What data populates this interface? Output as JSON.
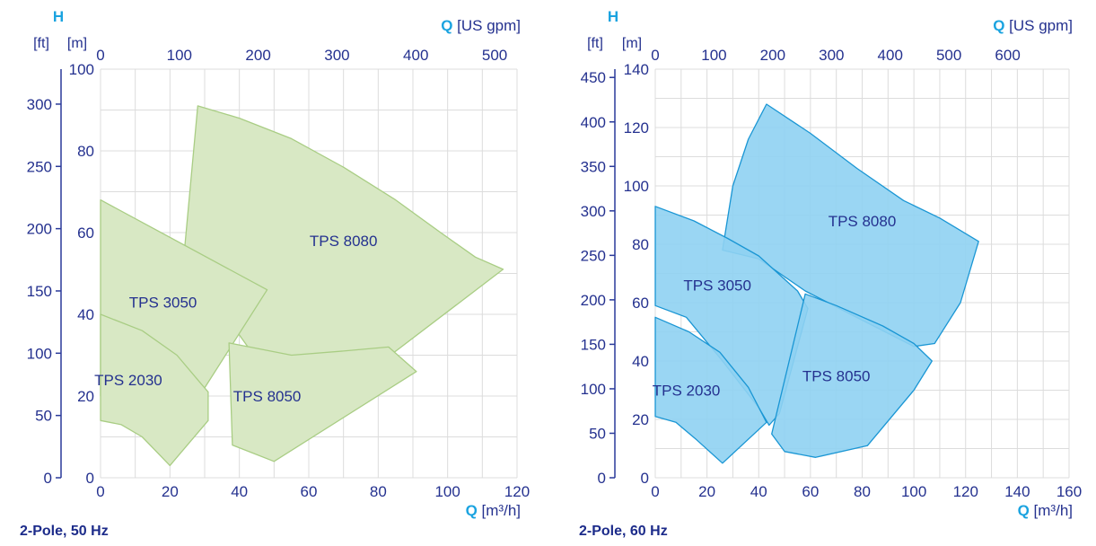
{
  "colors": {
    "axis_text": "#24318f",
    "axis_line": "#2a3a9a",
    "accent": "#1aa3e0",
    "grid": "#dcdcdc",
    "fill_50hz": "#d8e8c4",
    "stroke_50hz": "#a9cd84",
    "fill_60hz": "#8fd1f2",
    "stroke_60hz": "#1a96d4"
  },
  "chart_data": [
    {
      "type": "area",
      "caption": "2-Pole, 50 Hz",
      "h_letter": "H",
      "h_unit_ft": "[ft]",
      "h_unit_m": "[m]",
      "q_letter": "Q",
      "q_unit_top": "[US gpm]",
      "q_unit_bottom": "[m³/h]",
      "xlim": [
        0,
        120
      ],
      "ylim": [
        0,
        100
      ],
      "x_ticks": [
        0,
        20,
        40,
        60,
        80,
        100,
        120
      ],
      "y_ticks": [
        0,
        20,
        40,
        60,
        80,
        100
      ],
      "ft_ticks": [
        0,
        50,
        100,
        150,
        200,
        250,
        300
      ],
      "gpm_ticks": [
        0,
        100,
        200,
        300,
        400,
        500
      ],
      "m_per_ft": 0.3048,
      "m3h_per_gpm": 0.2271,
      "grid": true,
      "series": [
        {
          "name": "TPS 8080",
          "label_at": [
            70,
            58
          ],
          "points": [
            [
              28,
              91
            ],
            [
              40,
              88
            ],
            [
              55,
              83
            ],
            [
              70,
              76
            ],
            [
              85,
              68
            ],
            [
              98,
              60
            ],
            [
              108,
              54
            ],
            [
              116,
              51
            ],
            [
              65,
              18
            ],
            [
              45,
              29
            ],
            [
              24,
              54
            ]
          ]
        },
        {
          "name": "TPS 3050",
          "label_at": [
            18,
            43
          ],
          "points": [
            [
              0,
              68
            ],
            [
              48,
              46
            ],
            [
              30,
              22
            ],
            [
              26,
              10
            ],
            [
              0,
              20
            ]
          ]
        },
        {
          "name": "TPS 8050",
          "label_at": [
            48,
            20
          ],
          "points": [
            [
              37,
              33
            ],
            [
              55,
              30
            ],
            [
              70,
              31
            ],
            [
              83,
              32
            ],
            [
              91,
              26
            ],
            [
              50,
              4
            ],
            [
              38,
              8
            ]
          ]
        },
        {
          "name": "TPS 2030",
          "label_at": [
            8,
            24
          ],
          "points": [
            [
              0,
              40
            ],
            [
              12,
              36
            ],
            [
              22,
              30
            ],
            [
              29,
              23
            ],
            [
              31,
              21
            ],
            [
              31,
              14
            ],
            [
              20,
              3
            ],
            [
              12,
              10
            ],
            [
              6,
              13
            ],
            [
              0,
              14
            ]
          ]
        }
      ]
    },
    {
      "type": "area",
      "caption": "2-Pole, 60 Hz",
      "h_letter": "H",
      "h_unit_ft": "[ft]",
      "h_unit_m": "[m]",
      "q_letter": "Q",
      "q_unit_top": "[US gpm]",
      "q_unit_bottom": "[m³/h]",
      "xlim": [
        0,
        160
      ],
      "ylim": [
        0,
        140
      ],
      "x_ticks": [
        0,
        20,
        40,
        60,
        80,
        100,
        120,
        140,
        160
      ],
      "y_ticks": [
        0,
        20,
        40,
        60,
        80,
        100,
        120,
        140
      ],
      "ft_ticks": [
        0,
        50,
        100,
        150,
        200,
        250,
        300,
        350,
        400,
        450
      ],
      "gpm_ticks": [
        0,
        100,
        200,
        300,
        400,
        500,
        600
      ],
      "m_per_ft": 0.3048,
      "m3h_per_gpm": 0.2271,
      "grid": true,
      "series": [
        {
          "name": "TPS 8080",
          "label_at": [
            80,
            88
          ],
          "points": [
            [
              26,
              78
            ],
            [
              30,
              100
            ],
            [
              36,
              116
            ],
            [
              43,
              128
            ],
            [
              60,
              118
            ],
            [
              78,
              106
            ],
            [
              96,
              95
            ],
            [
              110,
              89
            ],
            [
              125,
              81
            ],
            [
              118,
              60
            ],
            [
              108,
              46
            ],
            [
              100,
              45
            ],
            [
              80,
              54
            ],
            [
              58,
              64
            ],
            [
              40,
              75
            ]
          ]
        },
        {
          "name": "TPS 3050",
          "label_at": [
            24,
            66
          ],
          "points": [
            [
              0,
              93
            ],
            [
              15,
              88
            ],
            [
              28,
              82
            ],
            [
              40,
              76
            ],
            [
              55,
              64
            ],
            [
              59,
              58
            ],
            [
              48,
              22
            ],
            [
              44,
              18
            ],
            [
              40,
              24
            ],
            [
              26,
              40
            ],
            [
              12,
              55
            ],
            [
              0,
              59
            ]
          ]
        },
        {
          "name": "TPS 8050",
          "label_at": [
            70,
            35
          ],
          "points": [
            [
              58,
              63
            ],
            [
              70,
              59
            ],
            [
              88,
              52
            ],
            [
              100,
              46
            ],
            [
              107,
              40
            ],
            [
              100,
              30
            ],
            [
              82,
              11
            ],
            [
              62,
              7
            ],
            [
              50,
              9
            ],
            [
              45,
              15
            ]
          ]
        },
        {
          "name": "TPS 2030",
          "label_at": [
            12,
            30
          ],
          "points": [
            [
              0,
              55
            ],
            [
              13,
              50
            ],
            [
              25,
              43
            ],
            [
              36,
              31
            ],
            [
              43,
              19
            ],
            [
              26,
              5
            ],
            [
              16,
              13
            ],
            [
              8,
              19
            ],
            [
              0,
              21
            ]
          ]
        }
      ]
    }
  ]
}
